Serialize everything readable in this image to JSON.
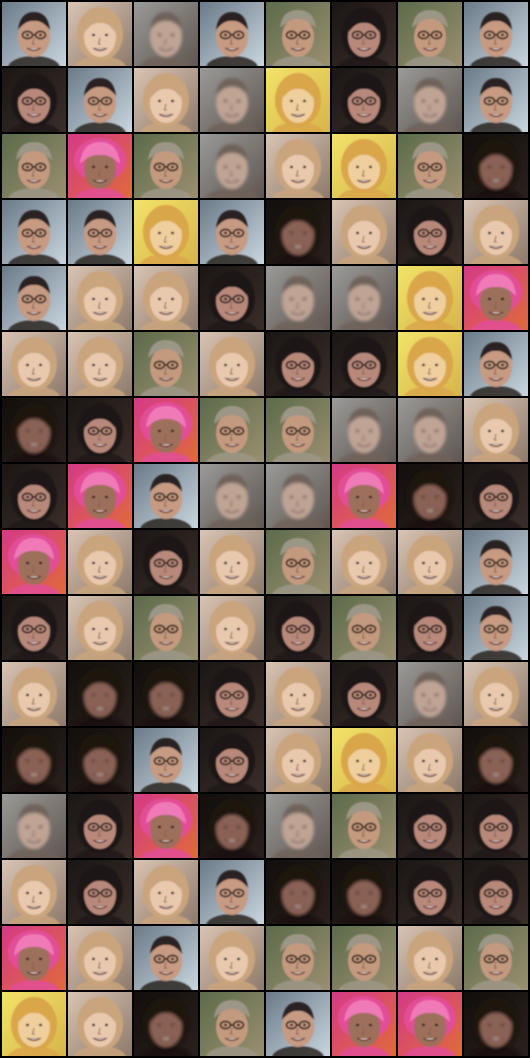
{
  "grid": {
    "rows": 16,
    "cols": 8,
    "tiles": [
      [
        "nerd-man",
        "blonde-child",
        "ghost-blur",
        "nerd-man",
        "blonde-man",
        "dark-glasses-woman",
        "blonde-man",
        "nerd-man"
      ],
      [
        "dark-glasses-woman",
        "nerd-man",
        "blonde-child",
        "ghost-blur",
        "yellow-child",
        "dark-glasses-woman",
        "ghost-blur",
        "nerd-man"
      ],
      [
        "blonde-man",
        "pink-headscarf",
        "blonde-man",
        "ghost-blur",
        "blonde-child",
        "yellow-child",
        "blonde-man",
        "dark-blur"
      ],
      [
        "nerd-man",
        "nerd-man",
        "yellow-child",
        "nerd-man",
        "dark-blur",
        "blonde-child",
        "dark-glasses-woman",
        "blonde-child"
      ],
      [
        "nerd-man",
        "blonde-child",
        "blonde-child",
        "dark-glasses-woman",
        "ghost-blur",
        "ghost-blur",
        "yellow-child",
        "pink-headscarf"
      ],
      [
        "blonde-child",
        "blonde-child",
        "blonde-man",
        "blonde-child",
        "dark-glasses-woman",
        "dark-glasses-woman",
        "yellow-child",
        "nerd-man"
      ],
      [
        "dark-blur",
        "dark-glasses-woman",
        "pink-headscarf",
        "blonde-man",
        "blonde-man",
        "ghost-blur",
        "ghost-blur",
        "blonde-child"
      ],
      [
        "dark-glasses-woman",
        "pink-headscarf",
        "nerd-man",
        "ghost-blur",
        "ghost-blur",
        "pink-headscarf",
        "dark-blur",
        "dark-glasses-woman"
      ],
      [
        "pink-headscarf",
        "blonde-child",
        "dark-glasses-woman",
        "blonde-child",
        "blonde-man",
        "blonde-child",
        "blonde-child",
        "nerd-man"
      ],
      [
        "dark-glasses-woman",
        "blonde-child",
        "blonde-man",
        "blonde-child",
        "dark-glasses-woman",
        "blonde-man",
        "dark-glasses-woman",
        "nerd-man"
      ],
      [
        "blonde-child",
        "dark-blur",
        "dark-blur",
        "dark-glasses-woman",
        "blonde-child",
        "dark-glasses-woman",
        "ghost-blur",
        "blonde-child"
      ],
      [
        "dark-blur",
        "dark-blur",
        "nerd-man",
        "dark-glasses-woman",
        "blonde-child",
        "yellow-child",
        "blonde-child",
        "dark-blur"
      ],
      [
        "ghost-blur",
        "dark-glasses-woman",
        "pink-headscarf",
        "dark-blur",
        "ghost-blur",
        "blonde-man",
        "dark-glasses-woman",
        "dark-glasses-woman"
      ],
      [
        "blonde-child",
        "dark-glasses-woman",
        "blonde-child",
        "nerd-man",
        "dark-blur",
        "dark-blur",
        "dark-glasses-woman",
        "dark-glasses-woman"
      ],
      [
        "pink-headscarf",
        "blonde-child",
        "nerd-man",
        "blonde-child",
        "blonde-man",
        "blonde-man",
        "blonde-child",
        "blonde-man"
      ],
      [
        "yellow-child",
        "blonde-child",
        "dark-blur",
        "blonde-man",
        "nerd-man",
        "pink-headscarf",
        "pink-headscarf",
        "dark-blur"
      ]
    ]
  }
}
